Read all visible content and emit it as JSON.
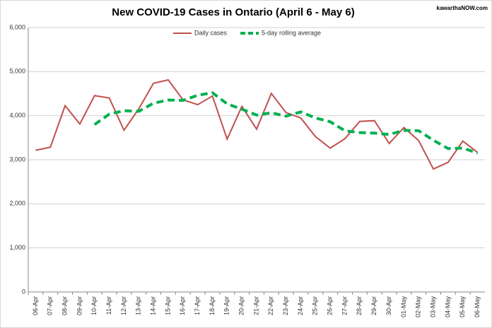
{
  "chart_data": {
    "type": "line",
    "title": "New COVID-19 Cases in Ontario (April 6 - May 6)",
    "watermark": "kawarthaNOW.com",
    "categories": [
      "06-Apr",
      "07-Apr",
      "08-Apr",
      "09-Apr",
      "10-Apr",
      "11-Apr",
      "12-Apr",
      "13-Apr",
      "14-Apr",
      "15-Apr",
      "16-Apr",
      "17-Apr",
      "18-Apr",
      "19-Apr",
      "20-Apr",
      "21-Apr",
      "22-Apr",
      "23-Apr",
      "24-Apr",
      "25-Apr",
      "26-Apr",
      "27-Apr",
      "28-Apr",
      "29-Apr",
      "30-Apr",
      "01-May",
      "02-May",
      "03-May",
      "04-May",
      "05-May",
      "06-May"
    ],
    "series": [
      {
        "name": "Daily cases",
        "color": "#c0504d",
        "dashed": false,
        "values": [
          3215,
          3285,
          4227,
          3812,
          4456,
          4401,
          3670,
          4156,
          4736,
          4812,
          4362,
          4250,
          4447,
          3469,
          4212,
          3695,
          4505,
          4070,
          3947,
          3523,
          3265,
          3480,
          3871,
          3887,
          3369,
          3732,
          3436,
          2791,
          2941,
          3424,
          3166
        ]
      },
      {
        "name": "5-day rolling average",
        "color": "#00b050",
        "dashed": true,
        "values": [
          null,
          null,
          null,
          null,
          3799,
          4036,
          4113,
          4099,
          4284,
          4355,
          4347,
          4463,
          4521,
          4268,
          4148,
          4015,
          4066,
          3990,
          4086,
          3948,
          3862,
          3657,
          3617,
          3605,
          3574,
          3668,
          3659,
          3443,
          3254,
          3265,
          3152
        ]
      }
    ],
    "ylim": [
      0,
      6000
    ],
    "yticks": [
      0,
      {
        "value": 1000,
        "label": "1,000"
      },
      {
        "value": 2000,
        "label": "2,000"
      },
      {
        "value": 3000,
        "label": "3,000"
      },
      {
        "value": 4000,
        "label": "4,000"
      },
      {
        "value": 5000,
        "label": "5,000"
      },
      {
        "value": 6000,
        "label": "6,000"
      }
    ],
    "grid": true,
    "legend": "top"
  }
}
